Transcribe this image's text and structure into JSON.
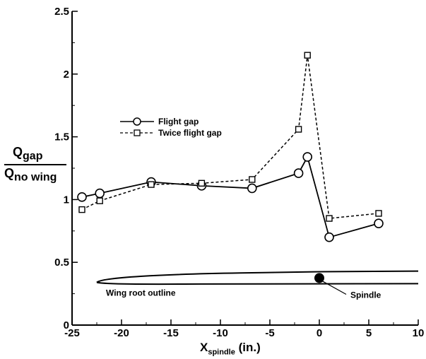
{
  "chart_data": {
    "type": "line",
    "xlabel": {
      "main": "X",
      "sub": "spindle",
      "unit": " (in.)"
    },
    "ylabel": {
      "numerator": "Q",
      "numerator_sub": "gap",
      "denominator": "Q",
      "denominator_sub": "no wing"
    },
    "xlim": [
      -25,
      10
    ],
    "ylim": [
      0,
      2.5
    ],
    "xticks": [
      -25,
      -20,
      -15,
      -10,
      -5,
      0,
      5,
      10
    ],
    "yticks": [
      0,
      0.5,
      1,
      1.5,
      2,
      2.5
    ],
    "xtick_labels": [
      "-25",
      "-20",
      "-15",
      "-10",
      "-5",
      "0",
      "5",
      "10"
    ],
    "ytick_labels": [
      "0",
      "0.5",
      "1",
      "1.5",
      "2",
      "2.5"
    ],
    "legend_position": "center-left",
    "series": [
      {
        "name": "Flight gap",
        "marker": "circle",
        "line_style": "solid",
        "x": [
          -24,
          -22.2,
          -17,
          -11.9,
          -6.8,
          -2.1,
          -1.2,
          1,
          6
        ],
        "y": [
          1.02,
          1.05,
          1.14,
          1.11,
          1.09,
          1.21,
          1.34,
          0.7,
          0.81
        ]
      },
      {
        "name": "Twice flight gap",
        "marker": "square",
        "line_style": "dashed",
        "x": [
          -24,
          -22.2,
          -17,
          -11.9,
          -6.8,
          -2.1,
          -1.2,
          1,
          6
        ],
        "y": [
          0.92,
          0.99,
          1.12,
          1.13,
          1.16,
          1.56,
          2.15,
          0.85,
          0.89
        ]
      }
    ],
    "annotations": {
      "wing_label": "Wing root outline",
      "spindle_label": "Spindle"
    }
  }
}
